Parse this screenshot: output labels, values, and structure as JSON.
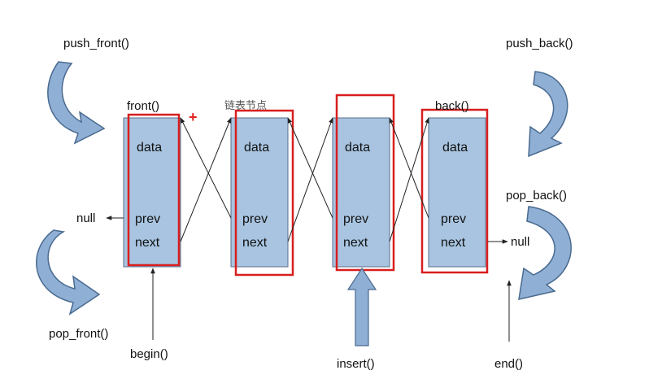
{
  "labels": {
    "push_front": "push_front()",
    "push_back": "push_back()",
    "pop_front": "pop_front()",
    "pop_back": "pop_back()",
    "front": "front()",
    "back": "back()",
    "list_node": "链表节点",
    "begin": "begin()",
    "insert": "insert()",
    "end": "end()",
    "null_left": "null",
    "null_right": "null",
    "plus": "+"
  },
  "nodes": [
    {
      "data": "data",
      "prev": "prev",
      "next": "next"
    },
    {
      "data": "data",
      "prev": "prev",
      "next": "next"
    },
    {
      "data": "data",
      "prev": "prev",
      "next": "next"
    },
    {
      "data": "data",
      "prev": "prev",
      "next": "next"
    }
  ],
  "colors": {
    "node_fill": "#a8c4e0",
    "node_stroke": "#5a6e8a",
    "highlight": "#d81e1e",
    "arrow_fill": "#8fb0d4",
    "arrow_stroke": "#4a6a90",
    "line": "#222222"
  }
}
